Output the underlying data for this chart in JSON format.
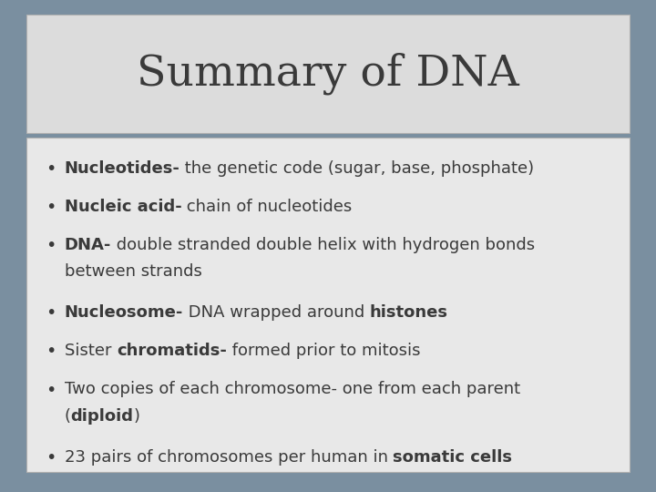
{
  "title": "Summary of DNA",
  "title_fontsize": 34,
  "background_outer": "#7a8fa0",
  "background_title": "#dcdcdc",
  "background_body": "#e8e8e8",
  "border_color": "#b0b0b0",
  "text_color": "#3a3a3a",
  "bullet_fontsize": 13,
  "bullet_items": [
    [
      {
        "text": "Nucleotides-",
        "bold": true
      },
      {
        "text": " the genetic code (sugar, base, phosphate)",
        "bold": false
      }
    ],
    [
      {
        "text": "Nucleic acid-",
        "bold": true
      },
      {
        "text": " chain of nucleotides",
        "bold": false
      }
    ],
    [
      {
        "text": "DNA-",
        "bold": true
      },
      {
        "text": " double stranded double helix with hydrogen bonds",
        "bold": false
      },
      {
        "text": "\nbetween strands",
        "bold": false
      }
    ],
    [
      {
        "text": "Nucleosome-",
        "bold": true
      },
      {
        "text": " DNA wrapped around ",
        "bold": false
      },
      {
        "text": "histones",
        "bold": true
      }
    ],
    [
      {
        "text": "Sister ",
        "bold": false
      },
      {
        "text": "chromatids-",
        "bold": true
      },
      {
        "text": " formed prior to mitosis",
        "bold": false
      }
    ],
    [
      {
        "text": "Two copies of each chromosome- one from each parent",
        "bold": false
      },
      {
        "text": "\n(",
        "bold": false
      },
      {
        "text": "diploid",
        "bold": true
      },
      {
        "text": ")",
        "bold": false
      }
    ],
    [
      {
        "text": "23 pairs of chromosomes per human in ",
        "bold": false
      },
      {
        "text": "somatic cells",
        "bold": true
      }
    ]
  ]
}
